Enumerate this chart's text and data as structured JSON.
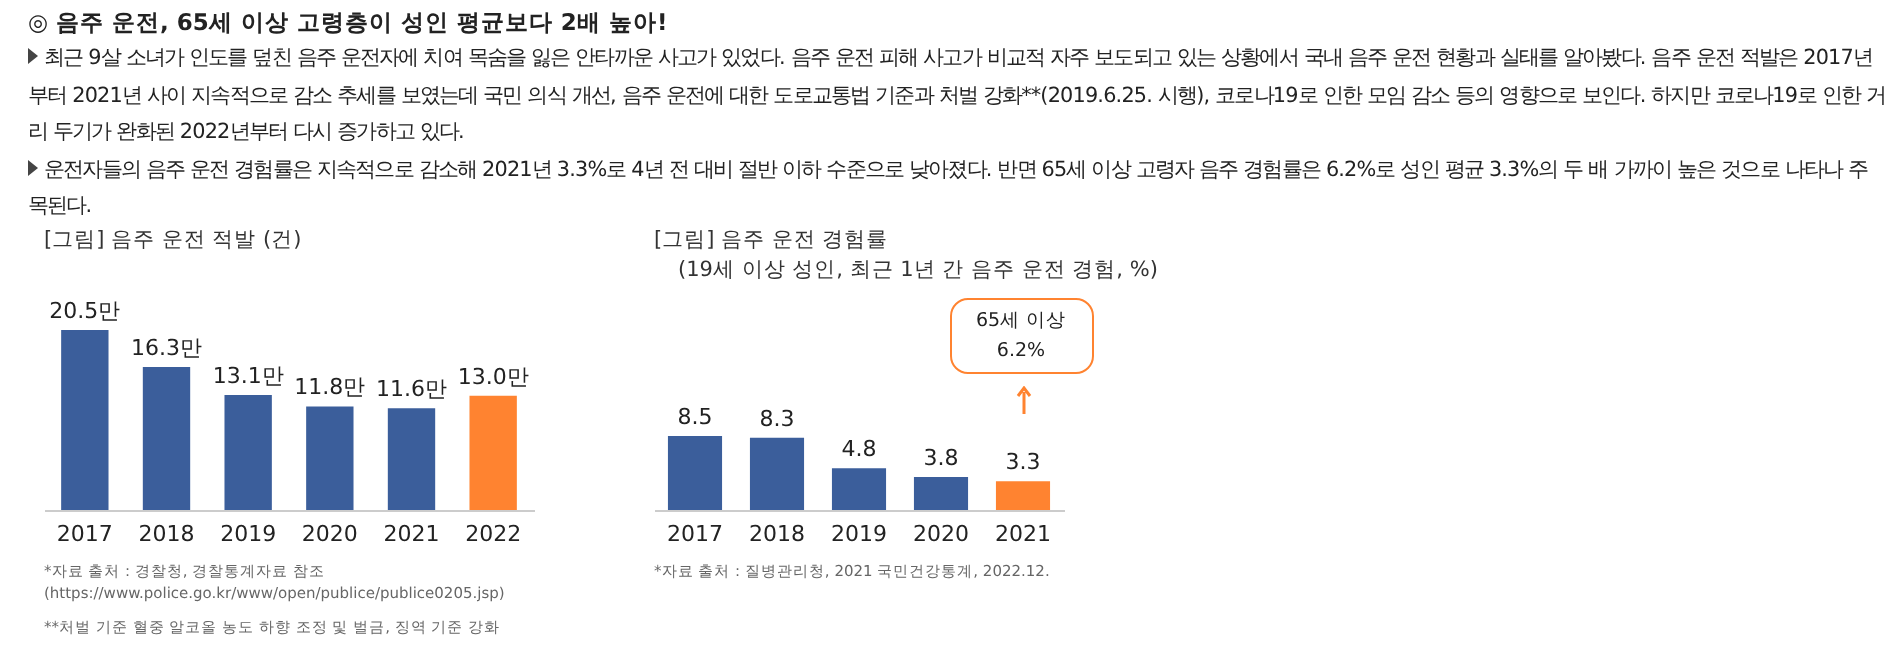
{
  "chart_data": [
    {
      "type": "other",
      "title": "◎ 음주 운전, 65세 이상 고령층이 성인 평균보다 2배 높아!",
      "annotations": [
        "최근 9살 소녀가 인도를 덮친 음주 운전자에 치여 목숨을 잃은 안타까운 사고가 있었다. 음주 운전 피해 사고가 비교적 자주 보도되고 있는 상황에서 국내 음주 운전 현황과 실태를 알아봤다. 음주 운전 적발은 2017년부터 2021년 사이 지속적으로 감소 추세를 보였는데 국민 의식 개선,  음주 운전에 대한 도로교통법 기준과 처벌 강화**(2019.6.25. 시행), 코로나19로 인한 모임 감소 등의 영향으로 보인다. 하지만 코로나19로 인한 거리 두기가 완화된 2022년부터 다시 증가하고 있다.",
        "운전자들의 음주 운전 경험률은 지속적으로 감소해 2021년 3.3%로 4년 전 대비 절반 이하 수준으로 낮아졌다. 반면 65세 이상 고령자 음주 경험률은 6.2%로 성인 평균 3.3%의 두 배 가까이 높은 것으로 나타나 주목된다."
      ]
    },
    {
      "type": "bar",
      "title": "[그림] 음주 운전 적발 (건)",
      "categories": [
        "2017",
        "2018",
        "2019",
        "2020",
        "2021",
        "2022"
      ],
      "values": [
        20.5,
        16.3,
        13.1,
        11.8,
        11.6,
        13.0
      ],
      "colors": [
        "#3b5e9b",
        "#3b5e9b",
        "#3b5e9b",
        "#3b5e9b",
        "#3b5e9b",
        "#ff8330"
      ],
      "value_labels": [
        "20.5만",
        "16.3만",
        "13.1만",
        "11.8만",
        "11.6만",
        "13.0만"
      ],
      "annotations": [
        "*자료 출처 : 경찰청, 경찰통계자료 참조 (https://www.police.go.kr/www/open/publice/publice0205.jsp)",
        "**처벌 기준 혈중 알코올 농도 하향 조정 및 벌금, 징역 기준 강화"
      ]
    },
    {
      "type": "bar",
      "title": "[그림] 음주 운전 경험률",
      "subtitle": "(19세 이상 성인, 최근 1년 간 음주 운전 경험, %)",
      "categories": [
        "2017",
        "2018",
        "2019",
        "2020",
        "2021"
      ],
      "values": [
        8.5,
        8.3,
        4.8,
        3.8,
        3.3
      ],
      "colors": [
        "#3b5e9b",
        "#3b5e9b",
        "#3b5e9b",
        "#3b5e9b",
        "#ff8330"
      ],
      "data_labels": true,
      "annotations": [
        "65세 이상\n6.2%",
        "*자료 출처 : 질병관리청, 2021 국민건강통계, 2022.12."
      ]
    }
  ]
}
